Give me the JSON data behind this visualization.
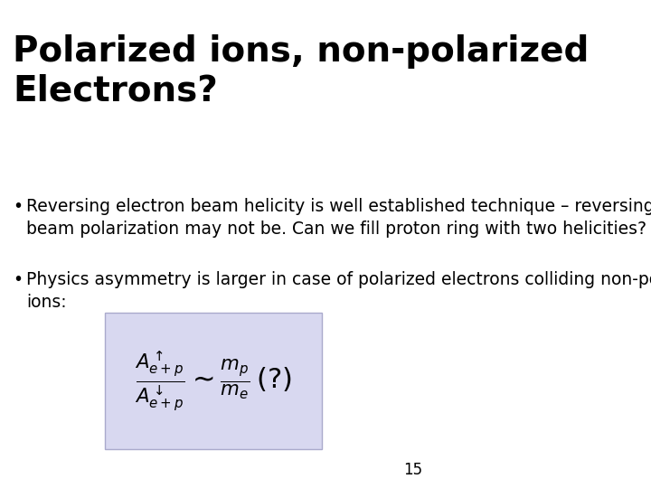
{
  "title_line1": "Polarized ions, non-polarized",
  "title_line2": "Electrons?",
  "bullet1_line1": "Reversing electron beam helicity is well established technique – reversing proton",
  "bullet1_line2": "beam polarization may not be. Can we fill proton ring with two helicities?",
  "bullet2_line1": "Physics asymmetry is larger in case of polarized electrons colliding non-polarized",
  "bullet2_line2": "ions:",
  "formula": "\\frac{A^{\\uparrow}_{e+p}}{A^{\\downarrow}_{e+p}} \\sim \\frac{m_p}{m_e}\\,(?) ",
  "page_number": "15",
  "bg_color": "#ffffff",
  "title_color": "#000000",
  "text_color": "#000000",
  "formula_bg_color": "#d8d8f0",
  "title_fontsize": 28,
  "text_fontsize": 13.5,
  "page_num_fontsize": 12
}
